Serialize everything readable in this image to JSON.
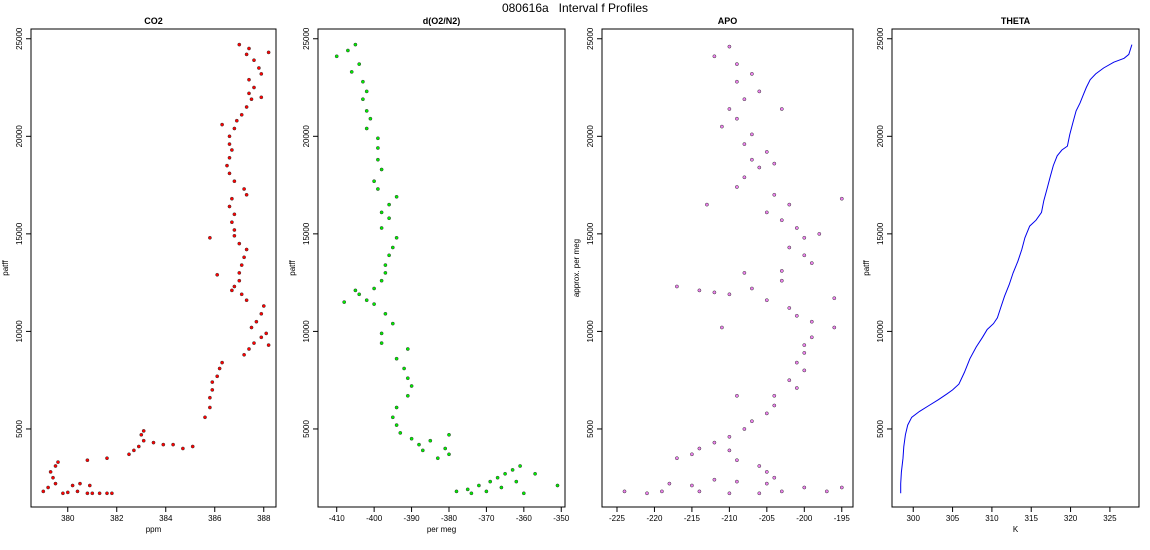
{
  "page_title": "080616a   Interval f Profiles",
  "chart_data": [
    {
      "type": "scatter",
      "title": "CO2",
      "xlabel": "ppm",
      "ylabel": "patff",
      "xlim": [
        378.5,
        388.5
      ],
      "ylim": [
        1000,
        25500
      ],
      "xticks": [
        380,
        382,
        384,
        386,
        388
      ],
      "yticks": [
        5000,
        10000,
        15000,
        20000,
        25000
      ],
      "color": "#ff0000",
      "points": [
        [
          379.0,
          1800
        ],
        [
          379.2,
          2000
        ],
        [
          379.5,
          2200
        ],
        [
          379.4,
          2500
        ],
        [
          379.3,
          2800
        ],
        [
          379.5,
          3100
        ],
        [
          379.6,
          3300
        ],
        [
          379.8,
          1700
        ],
        [
          380.0,
          1750
        ],
        [
          380.4,
          1800
        ],
        [
          380.8,
          1700
        ],
        [
          381.0,
          1700
        ],
        [
          381.3,
          1700
        ],
        [
          381.6,
          1700
        ],
        [
          381.8,
          1700
        ],
        [
          380.2,
          2100
        ],
        [
          380.5,
          2200
        ],
        [
          380.9,
          2100
        ],
        [
          380.8,
          3400
        ],
        [
          381.6,
          3500
        ],
        [
          382.5,
          3700
        ],
        [
          382.7,
          3900
        ],
        [
          382.9,
          4100
        ],
        [
          383.1,
          4400
        ],
        [
          383.0,
          4700
        ],
        [
          383.1,
          4900
        ],
        [
          383.5,
          4300
        ],
        [
          383.9,
          4200
        ],
        [
          384.3,
          4200
        ],
        [
          384.7,
          4000
        ],
        [
          385.1,
          4100
        ],
        [
          385.6,
          5600
        ],
        [
          385.8,
          6100
        ],
        [
          385.8,
          6600
        ],
        [
          385.9,
          7000
        ],
        [
          385.9,
          7400
        ],
        [
          386.1,
          7700
        ],
        [
          386.2,
          8100
        ],
        [
          386.3,
          8400
        ],
        [
          387.2,
          8800
        ],
        [
          387.4,
          9100
        ],
        [
          387.6,
          9400
        ],
        [
          387.9,
          9700
        ],
        [
          388.1,
          9900
        ],
        [
          387.5,
          10200
        ],
        [
          387.7,
          10500
        ],
        [
          387.9,
          10900
        ],
        [
          388.0,
          11300
        ],
        [
          387.3,
          11600
        ],
        [
          387.1,
          11900
        ],
        [
          386.7,
          12100
        ],
        [
          386.8,
          12300
        ],
        [
          387.0,
          12600
        ],
        [
          387.0,
          13000
        ],
        [
          387.1,
          13400
        ],
        [
          387.2,
          13800
        ],
        [
          387.3,
          14200
        ],
        [
          387.0,
          14500
        ],
        [
          386.8,
          14900
        ],
        [
          386.8,
          15200
        ],
        [
          386.7,
          15600
        ],
        [
          386.8,
          16000
        ],
        [
          386.6,
          16400
        ],
        [
          386.7,
          16800
        ],
        [
          387.3,
          17000
        ],
        [
          387.2,
          17300
        ],
        [
          386.8,
          17700
        ],
        [
          386.6,
          18100
        ],
        [
          386.5,
          18500
        ],
        [
          386.6,
          18900
        ],
        [
          386.7,
          19300
        ],
        [
          386.6,
          19600
        ],
        [
          386.6,
          20000
        ],
        [
          386.8,
          20400
        ],
        [
          386.9,
          20800
        ],
        [
          387.1,
          21100
        ],
        [
          387.3,
          21500
        ],
        [
          387.5,
          21900
        ],
        [
          387.4,
          22200
        ],
        [
          387.6,
          22500
        ],
        [
          387.4,
          22900
        ],
        [
          387.9,
          23200
        ],
        [
          387.8,
          23500
        ],
        [
          387.6,
          23900
        ],
        [
          387.3,
          24200
        ],
        [
          387.4,
          24500
        ],
        [
          387.0,
          24700
        ],
        [
          385.8,
          14800
        ],
        [
          386.1,
          12900
        ],
        [
          388.2,
          9300
        ],
        [
          388.2,
          24300
        ],
        [
          386.3,
          20600
        ],
        [
          387.9,
          22000
        ]
      ]
    },
    {
      "type": "scatter",
      "title": "d(O2/N2)",
      "xlabel": "per meg",
      "ylabel": "patff",
      "xlim": [
        -415,
        -349
      ],
      "ylim": [
        1000,
        25500
      ],
      "xticks": [
        -410,
        -400,
        -390,
        -380,
        -370,
        -360,
        -350
      ],
      "yticks": [
        5000,
        10000,
        15000,
        20000,
        25000
      ],
      "color": "#00ee00",
      "points": [
        [
          -410,
          24100
        ],
        [
          -407,
          24400
        ],
        [
          -405,
          24700
        ],
        [
          -404,
          23700
        ],
        [
          -406,
          23300
        ],
        [
          -403,
          22800
        ],
        [
          -402,
          22300
        ],
        [
          -403,
          21900
        ],
        [
          -402,
          21300
        ],
        [
          -401,
          20900
        ],
        [
          -402,
          20400
        ],
        [
          -399,
          19900
        ],
        [
          -399,
          19400
        ],
        [
          -399,
          18800
        ],
        [
          -398,
          18300
        ],
        [
          -400,
          17700
        ],
        [
          -399,
          17300
        ],
        [
          -394,
          16900
        ],
        [
          -396,
          16500
        ],
        [
          -398,
          16100
        ],
        [
          -396,
          15800
        ],
        [
          -398,
          15300
        ],
        [
          -394,
          14800
        ],
        [
          -395,
          14300
        ],
        [
          -396,
          13900
        ],
        [
          -397,
          13400
        ],
        [
          -397,
          13000
        ],
        [
          -398,
          12600
        ],
        [
          -400,
          12200
        ],
        [
          -404,
          11900
        ],
        [
          -402,
          11600
        ],
        [
          -400,
          11400
        ],
        [
          -408,
          11500
        ],
        [
          -405,
          12100
        ],
        [
          -397,
          10900
        ],
        [
          -395,
          10400
        ],
        [
          -398,
          9900
        ],
        [
          -398,
          9400
        ],
        [
          -391,
          9100
        ],
        [
          -394,
          8600
        ],
        [
          -392,
          8100
        ],
        [
          -391,
          7600
        ],
        [
          -390,
          7200
        ],
        [
          -391,
          6700
        ],
        [
          -394,
          6100
        ],
        [
          -395,
          5600
        ],
        [
          -394,
          5200
        ],
        [
          -393,
          4800
        ],
        [
          -390,
          4500
        ],
        [
          -388,
          4200
        ],
        [
          -387,
          3900
        ],
        [
          -380,
          3700
        ],
        [
          -381,
          4000
        ],
        [
          -380,
          4700
        ],
        [
          -385,
          4400
        ],
        [
          -383,
          3500
        ],
        [
          -378,
          1800
        ],
        [
          -375,
          1900
        ],
        [
          -372,
          2100
        ],
        [
          -369,
          2300
        ],
        [
          -367,
          2500
        ],
        [
          -365,
          2700
        ],
        [
          -363,
          2900
        ],
        [
          -361,
          3100
        ],
        [
          -362,
          2300
        ],
        [
          -366,
          2000
        ],
        [
          -370,
          1800
        ],
        [
          -374,
          1700
        ],
        [
          -360,
          1700
        ],
        [
          -351,
          2100
        ],
        [
          -357,
          2700
        ]
      ]
    },
    {
      "type": "scatter",
      "title": "APO",
      "xlabel": "",
      "ylabel": "approx. per meg",
      "xlim": [
        -227,
        -193.5
      ],
      "ylim": [
        1000,
        25500
      ],
      "xticks": [
        -225,
        -220,
        -215,
        -210,
        -205,
        -200,
        -195
      ],
      "yticks": [
        5000,
        10000,
        15000,
        20000,
        25000
      ],
      "color": "#ee82ee",
      "points": [
        [
          -210,
          24600
        ],
        [
          -212,
          24100
        ],
        [
          -209,
          23700
        ],
        [
          -207,
          23200
        ],
        [
          -209,
          22800
        ],
        [
          -206,
          22300
        ],
        [
          -208,
          21900
        ],
        [
          -210,
          21400
        ],
        [
          -209,
          20900
        ],
        [
          -211,
          20500
        ],
        [
          -207,
          20100
        ],
        [
          -208,
          19600
        ],
        [
          -205,
          19200
        ],
        [
          -207,
          18800
        ],
        [
          -206,
          18400
        ],
        [
          -208,
          17900
        ],
        [
          -209,
          17400
        ],
        [
          -204,
          17000
        ],
        [
          -202,
          16500
        ],
        [
          -205,
          16100
        ],
        [
          -203,
          15700
        ],
        [
          -201,
          15300
        ],
        [
          -200,
          14800
        ],
        [
          -202,
          14300
        ],
        [
          -200,
          13900
        ],
        [
          -199,
          13500
        ],
        [
          -203,
          13100
        ],
        [
          -203,
          12600
        ],
        [
          -207,
          12200
        ],
        [
          -210,
          11900
        ],
        [
          -212,
          12000
        ],
        [
          -214,
          12100
        ],
        [
          -205,
          11600
        ],
        [
          -202,
          11200
        ],
        [
          -201,
          10800
        ],
        [
          -199,
          10500
        ],
        [
          -196,
          10200
        ],
        [
          -199,
          9700
        ],
        [
          -200,
          9300
        ],
        [
          -200,
          8900
        ],
        [
          -201,
          8400
        ],
        [
          -200,
          8000
        ],
        [
          -202,
          7500
        ],
        [
          -201,
          7100
        ],
        [
          -204,
          6700
        ],
        [
          -204,
          6200
        ],
        [
          -205,
          5800
        ],
        [
          -207,
          5400
        ],
        [
          -208,
          5000
        ],
        [
          -210,
          4600
        ],
        [
          -212,
          4300
        ],
        [
          -214,
          4000
        ],
        [
          -215,
          3700
        ],
        [
          -217,
          3500
        ],
        [
          -210,
          3900
        ],
        [
          -209,
          3400
        ],
        [
          -206,
          3100
        ],
        [
          -205,
          2800
        ],
        [
          -204,
          2500
        ],
        [
          -205,
          2200
        ],
        [
          -209,
          2300
        ],
        [
          -212,
          2400
        ],
        [
          -215,
          2100
        ],
        [
          -219,
          1800
        ],
        [
          -221,
          1700
        ],
        [
          -224,
          1800
        ],
        [
          -218,
          2200
        ],
        [
          -214,
          1800
        ],
        [
          -210,
          1700
        ],
        [
          -206,
          1700
        ],
        [
          -203,
          1800
        ],
        [
          -200,
          2000
        ],
        [
          -197,
          1800
        ],
        [
          -195,
          2000
        ],
        [
          -196,
          11700
        ],
        [
          -195,
          16800
        ],
        [
          -208,
          13000
        ],
        [
          -203,
          21400
        ],
        [
          -198,
          15000
        ],
        [
          -213,
          16500
        ],
        [
          -211,
          10200
        ],
        [
          -217,
          12300
        ],
        [
          -209,
          6700
        ],
        [
          -204,
          18600
        ]
      ]
    },
    {
      "type": "line",
      "title": "THETA",
      "xlabel": "K",
      "ylabel": "patff",
      "xlim": [
        297.3,
        328.7
      ],
      "ylim": [
        1000,
        25500
      ],
      "xticks": [
        300,
        305,
        310,
        315,
        320,
        325
      ],
      "yticks": [
        5000,
        10000,
        15000,
        20000,
        25000
      ],
      "color": "#0000ee",
      "points": [
        [
          298.4,
          1700
        ],
        [
          298.4,
          2200
        ],
        [
          298.5,
          2800
        ],
        [
          298.7,
          3500
        ],
        [
          298.8,
          4100
        ],
        [
          299.0,
          4700
        ],
        [
          299.3,
          5200
        ],
        [
          299.8,
          5600
        ],
        [
          300.8,
          5900
        ],
        [
          302.0,
          6200
        ],
        [
          303.2,
          6500
        ],
        [
          304.3,
          6800
        ],
        [
          305.0,
          7000
        ],
        [
          305.8,
          7300
        ],
        [
          306.5,
          7900
        ],
        [
          307.2,
          8600
        ],
        [
          308.0,
          9200
        ],
        [
          308.8,
          9700
        ],
        [
          309.4,
          10100
        ],
        [
          310.2,
          10400
        ],
        [
          310.7,
          10700
        ],
        [
          311.1,
          11200
        ],
        [
          311.6,
          11800
        ],
        [
          312.2,
          12400
        ],
        [
          312.7,
          13000
        ],
        [
          313.3,
          13600
        ],
        [
          313.8,
          14200
        ],
        [
          314.2,
          14800
        ],
        [
          314.8,
          15400
        ],
        [
          315.6,
          15700
        ],
        [
          316.3,
          16100
        ],
        [
          316.6,
          16700
        ],
        [
          317.0,
          17300
        ],
        [
          317.4,
          17900
        ],
        [
          317.8,
          18500
        ],
        [
          318.3,
          19000
        ],
        [
          318.9,
          19300
        ],
        [
          319.6,
          19500
        ],
        [
          319.9,
          20100
        ],
        [
          320.3,
          20700
        ],
        [
          320.7,
          21300
        ],
        [
          321.2,
          21700
        ],
        [
          321.6,
          22100
        ],
        [
          322.0,
          22500
        ],
        [
          322.5,
          22900
        ],
        [
          323.2,
          23200
        ],
        [
          324.2,
          23500
        ],
        [
          325.5,
          23800
        ],
        [
          326.8,
          24000
        ],
        [
          327.4,
          24200
        ],
        [
          327.8,
          24700
        ]
      ]
    }
  ]
}
